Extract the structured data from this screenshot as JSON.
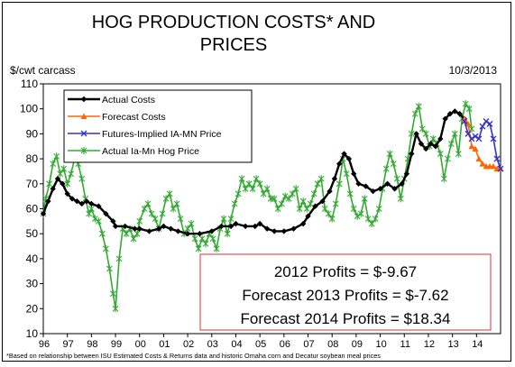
{
  "chart_data": {
    "type": "line",
    "title_lines": [
      "HOG PRODUCTION COSTS* AND",
      "PRICES"
    ],
    "ylabel": "$/cwt carcass",
    "date": "10/3/2013",
    "ylim": [
      10,
      110
    ],
    "yticks": [
      10,
      20,
      30,
      40,
      50,
      60,
      70,
      80,
      90,
      100,
      110
    ],
    "xlim": [
      1996.0,
      2015.0
    ],
    "xtick_labels": [
      "96",
      "97",
      "98",
      "99",
      "00",
      "01",
      "02",
      "03",
      "04",
      "05",
      "06",
      "07",
      "08",
      "09",
      "10",
      "11",
      "12",
      "13",
      "14"
    ],
    "footnote": "*Based on relationship between ISU Estimated Costs & Returns data and historic Omaha corn and Decatur soybean meal prices",
    "profits": [
      "2012 Profits = $-9.67",
      "Forecast 2013 Profits = $-7.62",
      "Forecast 2014 Profits = $18.34"
    ],
    "series": [
      {
        "name": "Actual Costs",
        "color": "#000000",
        "marker": "diamond",
        "points": [
          [
            1996.0,
            58
          ],
          [
            1996.2,
            63
          ],
          [
            1996.4,
            68
          ],
          [
            1996.6,
            72
          ],
          [
            1996.8,
            70
          ],
          [
            1997.0,
            66
          ],
          [
            1997.2,
            64
          ],
          [
            1997.4,
            63
          ],
          [
            1997.6,
            62
          ],
          [
            1997.8,
            63
          ],
          [
            1998.0,
            62
          ],
          [
            1998.3,
            61
          ],
          [
            1998.6,
            58
          ],
          [
            1998.9,
            55
          ],
          [
            1999.0,
            53
          ],
          [
            1999.4,
            53
          ],
          [
            1999.8,
            52
          ],
          [
            2000.0,
            52
          ],
          [
            2000.4,
            51
          ],
          [
            2000.8,
            52
          ],
          [
            2001.0,
            53
          ],
          [
            2001.3,
            52
          ],
          [
            2001.6,
            51
          ],
          [
            2002.0,
            50
          ],
          [
            2002.5,
            50
          ],
          [
            2003.0,
            51
          ],
          [
            2003.4,
            53
          ],
          [
            2003.8,
            53
          ],
          [
            2004.0,
            54
          ],
          [
            2004.4,
            53
          ],
          [
            2004.8,
            53
          ],
          [
            2005.0,
            54
          ],
          [
            2005.3,
            52
          ],
          [
            2005.6,
            51
          ],
          [
            2006.0,
            51
          ],
          [
            2006.4,
            52
          ],
          [
            2006.8,
            54
          ],
          [
            2007.0,
            57
          ],
          [
            2007.3,
            61
          ],
          [
            2007.6,
            63
          ],
          [
            2007.9,
            67
          ],
          [
            2008.1,
            72
          ],
          [
            2008.3,
            78
          ],
          [
            2008.5,
            82
          ],
          [
            2008.7,
            80
          ],
          [
            2008.9,
            74
          ],
          [
            2009.1,
            70
          ],
          [
            2009.4,
            69
          ],
          [
            2009.7,
            67
          ],
          [
            2010.0,
            68
          ],
          [
            2010.3,
            70
          ],
          [
            2010.6,
            68
          ],
          [
            2010.9,
            70
          ],
          [
            2011.1,
            74
          ],
          [
            2011.3,
            82
          ],
          [
            2011.5,
            90
          ],
          [
            2011.7,
            86
          ],
          [
            2011.9,
            84
          ],
          [
            2012.1,
            86
          ],
          [
            2012.3,
            85
          ],
          [
            2012.5,
            88
          ],
          [
            2012.7,
            96
          ],
          [
            2012.9,
            98
          ],
          [
            2013.1,
            99
          ],
          [
            2013.3,
            98
          ],
          [
            2013.5,
            96
          ]
        ]
      },
      {
        "name": "Forecast Costs",
        "color": "#ff6600",
        "marker": "triangle",
        "points": [
          [
            2013.5,
            96
          ],
          [
            2013.65,
            94
          ],
          [
            2013.8,
            85
          ],
          [
            2013.95,
            84
          ],
          [
            2014.1,
            80
          ],
          [
            2014.25,
            78
          ],
          [
            2014.4,
            77
          ],
          [
            2014.55,
            77
          ],
          [
            2014.7,
            77
          ],
          [
            2014.85,
            76
          ],
          [
            2015.0,
            76
          ]
        ]
      },
      {
        "name": "Futures-Implied IA-MN Price",
        "color": "#3333cc",
        "marker": "x",
        "points": [
          [
            2013.5,
            95
          ],
          [
            2013.65,
            90
          ],
          [
            2013.8,
            88
          ],
          [
            2013.95,
            89
          ],
          [
            2014.1,
            88
          ],
          [
            2014.25,
            93
          ],
          [
            2014.4,
            95
          ],
          [
            2014.55,
            94
          ],
          [
            2014.7,
            88
          ],
          [
            2014.85,
            80
          ],
          [
            2015.0,
            76
          ]
        ]
      },
      {
        "name": "Actual Ia-Mn Hog Price",
        "color": "#33aa33",
        "marker": "star",
        "points": [
          [
            1996.0,
            58
          ],
          [
            1996.1,
            64
          ],
          [
            1996.25,
            70
          ],
          [
            1996.4,
            78
          ],
          [
            1996.55,
            81
          ],
          [
            1996.7,
            74
          ],
          [
            1996.85,
            76
          ],
          [
            1997.0,
            70
          ],
          [
            1997.15,
            74
          ],
          [
            1997.3,
            80
          ],
          [
            1997.45,
            78
          ],
          [
            1997.6,
            72
          ],
          [
            1997.75,
            64
          ],
          [
            1997.9,
            58
          ],
          [
            1998.0,
            60
          ],
          [
            1998.15,
            56
          ],
          [
            1998.3,
            55
          ],
          [
            1998.45,
            50
          ],
          [
            1998.6,
            44
          ],
          [
            1998.75,
            36
          ],
          [
            1998.9,
            26
          ],
          [
            1999.0,
            20
          ],
          [
            1999.15,
            40
          ],
          [
            1999.3,
            52
          ],
          [
            1999.45,
            50
          ],
          [
            1999.6,
            52
          ],
          [
            1999.75,
            48
          ],
          [
            1999.9,
            50
          ],
          [
            2000.0,
            55
          ],
          [
            2000.2,
            60
          ],
          [
            2000.35,
            62
          ],
          [
            2000.5,
            58
          ],
          [
            2000.65,
            56
          ],
          [
            2000.8,
            52
          ],
          [
            2000.95,
            58
          ],
          [
            2001.1,
            64
          ],
          [
            2001.25,
            66
          ],
          [
            2001.4,
            60
          ],
          [
            2001.55,
            62
          ],
          [
            2001.7,
            56
          ],
          [
            2001.85,
            50
          ],
          [
            2002.0,
            52
          ],
          [
            2002.15,
            54
          ],
          [
            2002.3,
            48
          ],
          [
            2002.45,
            44
          ],
          [
            2002.6,
            48
          ],
          [
            2002.75,
            46
          ],
          [
            2002.9,
            50
          ],
          [
            2003.05,
            48
          ],
          [
            2003.2,
            44
          ],
          [
            2003.35,
            52
          ],
          [
            2003.5,
            56
          ],
          [
            2003.65,
            50
          ],
          [
            2003.8,
            56
          ],
          [
            2003.95,
            62
          ],
          [
            2004.1,
            66
          ],
          [
            2004.25,
            72
          ],
          [
            2004.4,
            68
          ],
          [
            2004.55,
            70
          ],
          [
            2004.7,
            68
          ],
          [
            2004.85,
            72
          ],
          [
            2005.0,
            70
          ],
          [
            2005.15,
            66
          ],
          [
            2005.3,
            68
          ],
          [
            2005.45,
            64
          ],
          [
            2005.6,
            64
          ],
          [
            2005.75,
            60
          ],
          [
            2005.9,
            62
          ],
          [
            2006.05,
            65
          ],
          [
            2006.2,
            64
          ],
          [
            2006.35,
            66
          ],
          [
            2006.5,
            68
          ],
          [
            2006.65,
            60
          ],
          [
            2006.8,
            63
          ],
          [
            2006.95,
            60
          ],
          [
            2007.1,
            62
          ],
          [
            2007.25,
            66
          ],
          [
            2007.4,
            70
          ],
          [
            2007.55,
            72
          ],
          [
            2007.7,
            60
          ],
          [
            2007.85,
            58
          ],
          [
            2008.0,
            56
          ],
          [
            2008.15,
            62
          ],
          [
            2008.3,
            70
          ],
          [
            2008.45,
            80
          ],
          [
            2008.6,
            74
          ],
          [
            2008.75,
            66
          ],
          [
            2008.9,
            60
          ],
          [
            2009.05,
            57
          ],
          [
            2009.2,
            58
          ],
          [
            2009.35,
            64
          ],
          [
            2009.5,
            56
          ],
          [
            2009.65,
            54
          ],
          [
            2009.8,
            56
          ],
          [
            2009.95,
            60
          ],
          [
            2010.1,
            68
          ],
          [
            2010.25,
            76
          ],
          [
            2010.4,
            82
          ],
          [
            2010.55,
            78
          ],
          [
            2010.7,
            72
          ],
          [
            2010.85,
            64
          ],
          [
            2011.0,
            72
          ],
          [
            2011.15,
            80
          ],
          [
            2011.3,
            90
          ],
          [
            2011.45,
            98
          ],
          [
            2011.6,
            101
          ],
          [
            2011.75,
            92
          ],
          [
            2011.9,
            90
          ],
          [
            2012.05,
            85
          ],
          [
            2012.2,
            88
          ],
          [
            2012.35,
            86
          ],
          [
            2012.5,
            82
          ],
          [
            2012.65,
            72
          ],
          [
            2012.8,
            80
          ],
          [
            2012.95,
            86
          ],
          [
            2013.1,
            90
          ],
          [
            2013.25,
            82
          ],
          [
            2013.4,
            96
          ],
          [
            2013.55,
            102
          ],
          [
            2013.7,
            100
          ],
          [
            2013.8,
            92
          ]
        ]
      }
    ]
  }
}
